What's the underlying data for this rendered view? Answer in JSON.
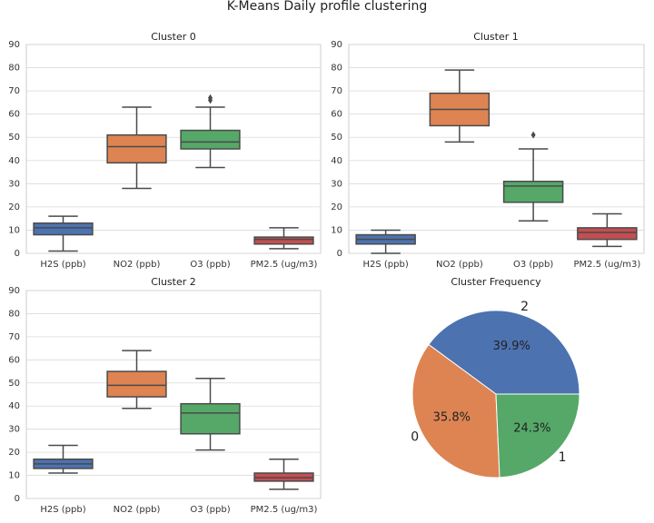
{
  "title": "K-Means Daily profile clustering",
  "colors": [
    "#4c72b0",
    "#dd8452",
    "#55a868",
    "#c44e52"
  ],
  "chart_data": [
    {
      "type": "box",
      "title": "Cluster 0",
      "categories": [
        "H2S (ppb)",
        "NO2 (ppb)",
        "O3 (ppb)",
        "PM2.5 (ug/m3)"
      ],
      "ylim": [
        0,
        90
      ],
      "yticks": [
        0,
        10,
        20,
        30,
        40,
        50,
        60,
        70,
        80,
        90
      ],
      "grid": true,
      "boxes": [
        {
          "min": 1,
          "q1": 8,
          "median": 11,
          "q3": 13,
          "max": 16,
          "outliers": []
        },
        {
          "min": 28,
          "q1": 39,
          "median": 46,
          "q3": 51,
          "max": 63,
          "outliers": []
        },
        {
          "min": 37,
          "q1": 45,
          "median": 48,
          "q3": 53,
          "max": 63,
          "outliers": [
            66,
            67
          ]
        },
        {
          "min": 2,
          "q1": 4,
          "median": 6,
          "q3": 7,
          "max": 11,
          "outliers": []
        }
      ]
    },
    {
      "type": "box",
      "title": "Cluster 1",
      "categories": [
        "H2S (ppb)",
        "NO2 (ppb)",
        "O3 (ppb)",
        "PM2.5 (ug/m3)"
      ],
      "ylim": [
        0,
        90
      ],
      "yticks": [
        0,
        10,
        20,
        30,
        40,
        50,
        60,
        70,
        80,
        90
      ],
      "grid": true,
      "boxes": [
        {
          "min": 0,
          "q1": 4,
          "median": 6,
          "q3": 8,
          "max": 10,
          "outliers": []
        },
        {
          "min": 48,
          "q1": 55,
          "median": 62,
          "q3": 69,
          "max": 79,
          "outliers": []
        },
        {
          "min": 14,
          "q1": 22,
          "median": 29,
          "q3": 31,
          "max": 45,
          "outliers": [
            51
          ]
        },
        {
          "min": 3,
          "q1": 6,
          "median": 9,
          "q3": 11,
          "max": 17,
          "outliers": []
        }
      ]
    },
    {
      "type": "box",
      "title": "Cluster 2",
      "categories": [
        "H2S (ppb)",
        "NO2 (ppb)",
        "O3 (ppb)",
        "PM2.5 (ug/m3)"
      ],
      "ylim": [
        0,
        90
      ],
      "yticks": [
        0,
        10,
        20,
        30,
        40,
        50,
        60,
        70,
        80,
        90
      ],
      "grid": true,
      "boxes": [
        {
          "min": 11,
          "q1": 13,
          "median": 15,
          "q3": 17,
          "max": 23,
          "outliers": []
        },
        {
          "min": 39,
          "q1": 44,
          "median": 49,
          "q3": 55,
          "max": 64,
          "outliers": []
        },
        {
          "min": 21,
          "q1": 28,
          "median": 37,
          "q3": 41,
          "max": 52,
          "outliers": []
        },
        {
          "min": 4,
          "q1": 7.5,
          "median": 9,
          "q3": 11,
          "max": 17,
          "outliers": []
        }
      ]
    },
    {
      "type": "pie",
      "title": "Cluster Frequency",
      "slices": [
        {
          "label": "2",
          "value": 39.9,
          "pct_label": "39.9%",
          "color": "#4c72b0"
        },
        {
          "label": "0",
          "value": 35.8,
          "pct_label": "35.8%",
          "color": "#dd8452"
        },
        {
          "label": "1",
          "value": 24.3,
          "pct_label": "24.3%",
          "color": "#55a868"
        }
      ]
    }
  ]
}
